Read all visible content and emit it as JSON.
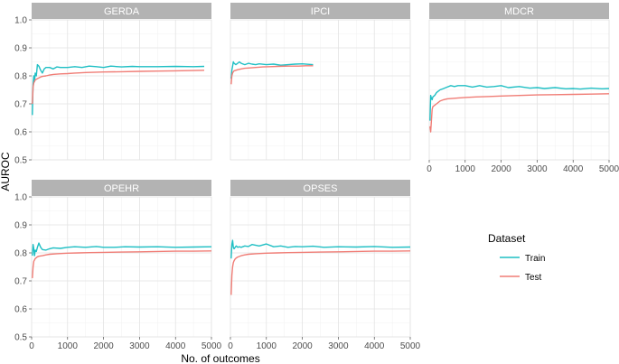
{
  "chart_data": {
    "type": "line",
    "ylabel": "AUROC",
    "xlabel": "No. of outcomes",
    "xlim": [
      0,
      5000
    ],
    "ylim": [
      0.5,
      1.0
    ],
    "x_ticks": [
      0,
      1000,
      2000,
      3000,
      4000,
      5000
    ],
    "x_tick_labels": [
      "0",
      "1000",
      "2000",
      "3000",
      "4000",
      "5000"
    ],
    "y_ticks": [
      0.5,
      0.6,
      0.7,
      0.8,
      0.9,
      1.0
    ],
    "y_tick_labels": [
      "0.5",
      "0.6",
      "0.7",
      "0.8",
      "0.9",
      "1.0"
    ],
    "grid": true,
    "legend": {
      "title": "Dataset",
      "placement": "right",
      "entries": [
        {
          "name": "Train",
          "color": "#1fbfc4"
        },
        {
          "name": "Test",
          "color": "#f07d76"
        }
      ]
    },
    "panels": [
      {
        "name": "GERDA",
        "series": [
          {
            "name": "Train",
            "x": [
              20,
              40,
              60,
              80,
              100,
              130,
              160,
              200,
              250,
              300,
              350,
              400,
              500,
              600,
              700,
              800,
              1000,
              1200,
              1400,
              1600,
              1800,
              2000,
              2200,
              2500,
              2800,
              3000,
              3500,
              4000,
              4500,
              4800
            ],
            "y": [
              0.66,
              0.77,
              0.8,
              0.78,
              0.81,
              0.8,
              0.84,
              0.835,
              0.82,
              0.81,
              0.825,
              0.83,
              0.83,
              0.825,
              0.832,
              0.83,
              0.83,
              0.833,
              0.83,
              0.835,
              0.833,
              0.83,
              0.835,
              0.832,
              0.834,
              0.833,
              0.833,
              0.834,
              0.833,
              0.834
            ]
          },
          {
            "name": "Test",
            "x": [
              20,
              40,
              60,
              80,
              100,
              130,
              160,
              200,
              250,
              300,
              400,
              500,
              600,
              800,
              1000,
              1200,
              1500,
              2000,
              2500,
              3000,
              3500,
              4000,
              4500,
              4800
            ],
            "y": [
              0.7,
              0.76,
              0.775,
              0.78,
              0.785,
              0.788,
              0.79,
              0.793,
              0.796,
              0.798,
              0.8,
              0.803,
              0.805,
              0.807,
              0.808,
              0.81,
              0.812,
              0.814,
              0.815,
              0.816,
              0.817,
              0.818,
              0.819,
              0.82
            ]
          }
        ]
      },
      {
        "name": "IPCI",
        "series": [
          {
            "name": "Train",
            "x": [
              20,
              40,
              60,
              80,
              100,
              150,
              200,
              250,
              300,
              400,
              500,
              600,
              700,
              800,
              1000,
              1200,
              1400,
              1600,
              1800,
              2000,
              2200,
              2300
            ],
            "y": [
              0.79,
              0.82,
              0.835,
              0.85,
              0.845,
              0.84,
              0.845,
              0.85,
              0.845,
              0.84,
              0.845,
              0.842,
              0.84,
              0.843,
              0.84,
              0.842,
              0.838,
              0.84,
              0.842,
              0.843,
              0.841,
              0.84
            ]
          },
          {
            "name": "Test",
            "x": [
              20,
              40,
              60,
              80,
              100,
              150,
              200,
              300,
              400,
              500,
              700,
              900,
              1100,
              1300,
              1600,
              1900,
              2100,
              2300
            ],
            "y": [
              0.77,
              0.8,
              0.81,
              0.815,
              0.818,
              0.82,
              0.822,
              0.825,
              0.827,
              0.828,
              0.83,
              0.832,
              0.833,
              0.834,
              0.835,
              0.835,
              0.836,
              0.836
            ]
          }
        ]
      },
      {
        "name": "MDCR",
        "series": [
          {
            "name": "Train",
            "x": [
              20,
              40,
              60,
              80,
              100,
              150,
              200,
              300,
              400,
              500,
              600,
              700,
              800,
              1000,
              1200,
              1400,
              1600,
              1800,
              2000,
              2200,
              2500,
              2800,
              3000,
              3200,
              3500,
              3800,
              4000,
              4200,
              4500,
              4800,
              5000
            ],
            "y": [
              0.64,
              0.73,
              0.72,
              0.715,
              0.725,
              0.73,
              0.74,
              0.75,
              0.755,
              0.76,
              0.765,
              0.762,
              0.765,
              0.765,
              0.76,
              0.765,
              0.76,
              0.762,
              0.765,
              0.758,
              0.762,
              0.756,
              0.758,
              0.755,
              0.758,
              0.754,
              0.755,
              0.753,
              0.756,
              0.754,
              0.755
            ]
          },
          {
            "name": "Test",
            "x": [
              20,
              40,
              60,
              80,
              100,
              150,
              200,
              300,
              400,
              500,
              700,
              1000,
              1300,
              1600,
              2000,
              2500,
              3000,
              3500,
              4000,
              4500,
              5000
            ],
            "y": [
              0.62,
              0.6,
              0.64,
              0.68,
              0.69,
              0.695,
              0.7,
              0.71,
              0.715,
              0.718,
              0.72,
              0.723,
              0.725,
              0.726,
              0.728,
              0.73,
              0.732,
              0.733,
              0.734,
              0.735,
              0.736
            ]
          }
        ]
      },
      {
        "name": "OPEHR",
        "series": [
          {
            "name": "Train",
            "x": [
              20,
              40,
              60,
              80,
              100,
              130,
              160,
              200,
              250,
              300,
              400,
              500,
              600,
              800,
              1000,
              1200,
              1500,
              1800,
              2000,
              2300,
              2600,
              3000,
              3500,
              4000,
              4500,
              5000
            ],
            "y": [
              0.79,
              0.83,
              0.815,
              0.79,
              0.81,
              0.805,
              0.82,
              0.835,
              0.82,
              0.812,
              0.81,
              0.815,
              0.818,
              0.816,
              0.82,
              0.822,
              0.82,
              0.823,
              0.82,
              0.82,
              0.822,
              0.821,
              0.822,
              0.82,
              0.821,
              0.822
            ]
          },
          {
            "name": "Test",
            "x": [
              20,
              40,
              60,
              80,
              100,
              130,
              160,
              200,
              300,
              400,
              500,
              700,
              1000,
              1300,
              1600,
              2000,
              2500,
              3000,
              3500,
              4000,
              4500,
              5000
            ],
            "y": [
              0.71,
              0.75,
              0.77,
              0.775,
              0.78,
              0.783,
              0.786,
              0.788,
              0.79,
              0.793,
              0.795,
              0.797,
              0.799,
              0.8,
              0.801,
              0.802,
              0.803,
              0.804,
              0.805,
              0.806,
              0.806,
              0.807
            ]
          }
        ]
      },
      {
        "name": "OPSES",
        "series": [
          {
            "name": "Train",
            "x": [
              20,
              40,
              60,
              80,
              100,
              130,
              160,
              200,
              250,
              300,
              400,
              500,
              600,
              800,
              1000,
              1200,
              1400,
              1600,
              1800,
              2000,
              2300,
              2600,
              3000,
              3500,
              4000,
              4500,
              5000
            ],
            "y": [
              0.78,
              0.83,
              0.845,
              0.82,
              0.815,
              0.82,
              0.825,
              0.82,
              0.822,
              0.82,
              0.825,
              0.823,
              0.83,
              0.825,
              0.832,
              0.822,
              0.825,
              0.82,
              0.823,
              0.822,
              0.824,
              0.82,
              0.822,
              0.821,
              0.823,
              0.82,
              0.821
            ]
          },
          {
            "name": "Test",
            "x": [
              20,
              40,
              60,
              80,
              100,
              130,
              160,
              200,
              300,
              400,
              500,
              700,
              1000,
              1300,
              1600,
              2000,
              2500,
              3000,
              3500,
              4000,
              4500,
              5000
            ],
            "y": [
              0.65,
              0.72,
              0.75,
              0.765,
              0.772,
              0.778,
              0.782,
              0.785,
              0.79,
              0.793,
              0.795,
              0.797,
              0.799,
              0.8,
              0.801,
              0.802,
              0.803,
              0.804,
              0.805,
              0.806,
              0.806,
              0.807
            ]
          }
        ]
      }
    ]
  }
}
